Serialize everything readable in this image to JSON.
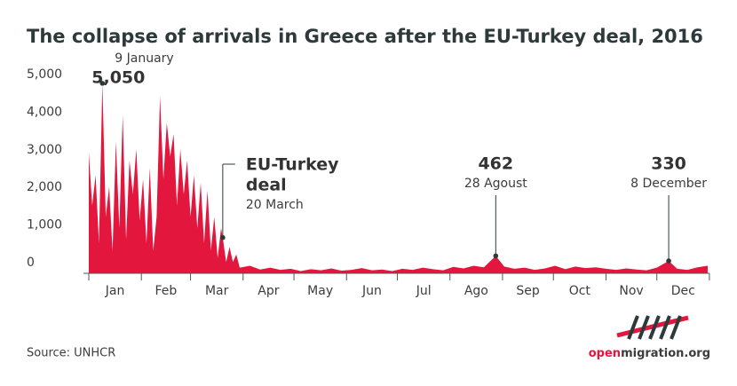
{
  "chart_data": {
    "type": "area",
    "title": "The collapse of arrivals in Greece after the EU-Turkey deal, 2016",
    "source": "Source: UNHCR",
    "brand": {
      "part1": "open",
      "part2": "migration.org"
    },
    "color": "#e3173e",
    "x": [
      1,
      3,
      5,
      7,
      9,
      11,
      13,
      15,
      17,
      19,
      21,
      23,
      25,
      27,
      29,
      31,
      33,
      35,
      37,
      39,
      41,
      43,
      45,
      47,
      49,
      51,
      53,
      55,
      57,
      59,
      61,
      63,
      65,
      67,
      69,
      71,
      73,
      75,
      77,
      79,
      80,
      82,
      84,
      86,
      88,
      90,
      96,
      102,
      108,
      114,
      120,
      126,
      132,
      138,
      144,
      150,
      156,
      162,
      168,
      174,
      180,
      186,
      192,
      198,
      204,
      210,
      216,
      222,
      228,
      234,
      241,
      246,
      252,
      258,
      264,
      270,
      276,
      282,
      288,
      294,
      300,
      306,
      312,
      318,
      324,
      330,
      336,
      343,
      348,
      354,
      360,
      366
    ],
    "values": [
      3200,
      1800,
      2600,
      800,
      5050,
      1500,
      2300,
      600,
      3500,
      1200,
      4200,
      900,
      3000,
      2100,
      3300,
      1400,
      2500,
      800,
      2800,
      600,
      1500,
      4700,
      2500,
      4000,
      3100,
      3700,
      1800,
      3300,
      2100,
      3000,
      1500,
      2600,
      1200,
      2400,
      800,
      2200,
      600,
      1500,
      400,
      1200,
      950,
      300,
      700,
      300,
      500,
      150,
      200,
      100,
      150,
      90,
      120,
      60,
      110,
      80,
      130,
      70,
      90,
      140,
      80,
      100,
      60,
      120,
      90,
      150,
      110,
      80,
      170,
      130,
      200,
      160,
      462,
      180,
      120,
      150,
      90,
      130,
      200,
      110,
      180,
      140,
      160,
      120,
      90,
      130,
      100,
      80,
      150,
      330,
      120,
      90,
      160,
      200
    ],
    "xlim": [
      1,
      366
    ],
    "month_starts": [
      1,
      32,
      61,
      92,
      122,
      153,
      183,
      214,
      245,
      275,
      306,
      336,
      367
    ],
    "months": [
      "Jan",
      "Feb",
      "Mar",
      "Apr",
      "May",
      "Jun",
      "Jul",
      "Ago",
      "Sep",
      "Oct",
      "Nov",
      "Dec"
    ],
    "ylim": [
      0,
      5300
    ],
    "yticks": [
      0,
      {
        "value": 1000,
        "label": "1,000"
      },
      {
        "value": 2000,
        "label": "2,000"
      },
      {
        "value": 3000,
        "label": "3,000"
      },
      {
        "value": 4000,
        "label": "4,000"
      },
      {
        "value": 5000,
        "label": "5,000"
      }
    ],
    "annotations": [
      {
        "x": 9,
        "value": 5050,
        "value_label": "5,050",
        "date": "9 January"
      },
      {
        "x": 80,
        "value": 950,
        "lines": [
          "EU-Turkey",
          "deal"
        ],
        "date": "20 March"
      },
      {
        "x": 241,
        "value": 462,
        "value_label": "462",
        "date": "28 Agoust"
      },
      {
        "x": 343,
        "value": 330,
        "value_label": "330",
        "date": "8 December"
      }
    ]
  }
}
